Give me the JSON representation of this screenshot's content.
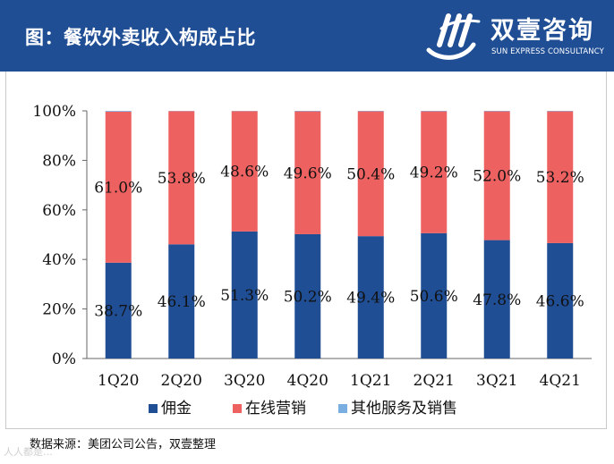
{
  "header": {
    "title": "图：餐饮外卖收入构成占比",
    "brand_name": "双壹咨询",
    "brand_sub": "SUN EXPRESS CONSULTANCY",
    "bg_color": "#1f4e95"
  },
  "footer": {
    "source": "数据来源：美团公司公告，双壹整理",
    "watermark": "人人都是…"
  },
  "chart_data": {
    "type": "bar",
    "stacked": true,
    "percent": true,
    "categories": [
      "1Q20",
      "2Q20",
      "3Q20",
      "4Q20",
      "1Q21",
      "2Q21",
      "3Q21",
      "4Q21"
    ],
    "series": [
      {
        "name": "佣金",
        "color": "#1f4e95",
        "values": [
          38.7,
          46.1,
          51.3,
          50.2,
          49.4,
          50.6,
          47.8,
          46.6
        ],
        "labels": [
          "38.7%",
          "46.1%",
          "51.3%",
          "50.2%",
          "49.4%",
          "50.6%",
          "47.8%",
          "46.6%"
        ]
      },
      {
        "name": "在线营销",
        "color": "#ee6161",
        "values": [
          61.0,
          53.8,
          48.6,
          49.6,
          50.4,
          49.2,
          52.0,
          53.2
        ],
        "labels": [
          "61.0%",
          "53.8%",
          "48.6%",
          "49.6%",
          "50.4%",
          "49.2%",
          "52.0%",
          "53.2%"
        ]
      },
      {
        "name": "其他服务及销售",
        "color": "#7aaee0",
        "values": [
          0.3,
          0.1,
          0.1,
          0.2,
          0.2,
          0.2,
          0.2,
          0.2
        ]
      }
    ],
    "yticks": [
      "0%",
      "20%",
      "40%",
      "60%",
      "80%",
      "100%"
    ],
    "ylim": [
      0,
      100
    ],
    "legend_position": "bottom"
  }
}
